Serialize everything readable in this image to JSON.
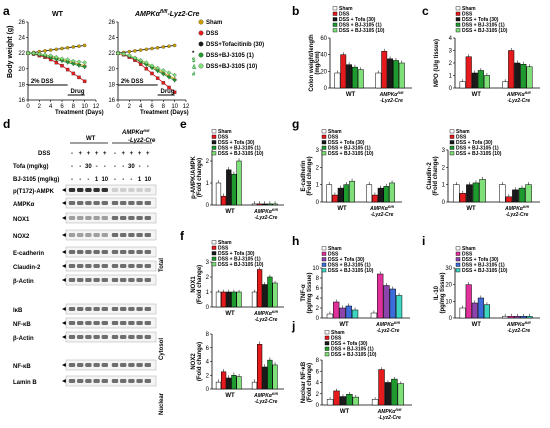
{
  "colors": {
    "sham": "#ffffff",
    "dss": "#e41a1c",
    "tofa": "#1a1a1a",
    "bj1": "#1f9a2e",
    "bj10": "#7fe07a",
    "tnf_tofa": "#8e44ad",
    "tnf_bj1": "#3d6bd9",
    "tnf_bj10": "#3ed6c0",
    "tnf_dss": "#e0309a"
  },
  "panel_labels": [
    "a",
    "b",
    "c",
    "d",
    "e",
    "f",
    "g",
    "h",
    "i",
    "j"
  ],
  "panel_a": {
    "title_left": "WT",
    "title_right": "AMPKα",
    "title_right_sup": "fl/fl",
    "title_right_suffix": "-Lyz2-Cre",
    "ylabel": "Body weight (g)",
    "xlabel": "Treatment (Days)",
    "yticks": [
      "16",
      "18",
      "20",
      "22",
      "24",
      "26"
    ],
    "xticks": [
      "0",
      "2",
      "4",
      "6",
      "8",
      "10",
      "12"
    ],
    "bar_dss": "2% DSS",
    "bar_drug": "Drug",
    "legend": [
      "Sham",
      "DSS",
      "DSS+Tofacitinib (30)",
      "DSS+BJ-3105 (1)",
      "DSS+BJ-3105 (10)"
    ],
    "sig_right": [
      "*",
      "$",
      "&",
      "#"
    ]
  },
  "panel_b": {
    "ylabel": "Colon weight/length",
    "ylabel2": "(mg/cm)",
    "yticks": [
      "0",
      "20",
      "40",
      "60"
    ],
    "legend": [
      "Sham",
      "DSS",
      "DSS + Tofa (30)",
      "DSS + BJ-3105 (1)",
      "DSS + BJ-3105 (10)"
    ],
    "x1": "WT",
    "x2": "AMPKα",
    "x2sup": "fl/fl",
    "x2b": "-Lyz2-Cre"
  },
  "panel_c": {
    "ylabel": "MPO (U/g tissue)",
    "yticks": [
      "0",
      "1",
      "2",
      "3",
      "4"
    ],
    "legend": [
      "Sham",
      "DSS",
      "DSS + Tofa (30)",
      "DSS + BJ-3105 (1)",
      "DSS + BJ-3105 (10)"
    ],
    "x1": "WT",
    "x2": "AMPKα",
    "x2sup": "fl/fl",
    "x2b": "-Lyz2-Cre"
  },
  "panel_d": {
    "header_wt": "WT",
    "header_ko": "AMPKα",
    "header_ko_sup": "fl/fl",
    "header_ko2": "-Lyz2-Cre",
    "row_dss": "DSS",
    "row_tofa": "Tofa (mg/kg)",
    "row_bj": "BJ-3105 (mg/kg)",
    "dss_marks": [
      "-",
      "+",
      "+",
      "+",
      "+",
      "-",
      "+",
      "+",
      "+",
      "+"
    ],
    "tofa_marks": [
      "-",
      "-",
      "30",
      "-",
      "-",
      "-",
      "-",
      "30",
      "-",
      "-"
    ],
    "bj_marks": [
      "-",
      "-",
      "-",
      "1",
      "10",
      "-",
      "-",
      "-",
      "1",
      "10"
    ],
    "bands": [
      "p(T172)-AMPK",
      "AMPKα",
      "NOX1",
      "NOX2",
      "E-cadherin",
      "Claudin-2",
      "β-Actin",
      "IκB",
      "NF-κB",
      "β-Actin",
      "NF-κB",
      "Lamin B"
    ],
    "section_total": "Total",
    "section_cytosol": "Cytosol",
    "section_nuclear": "Nuclear"
  },
  "panel_e": {
    "ylabel": "p-AMPK/AMPK",
    "ylabel2": "(Fold change)",
    "yticks": [
      "0",
      "1",
      "2"
    ],
    "legend": [
      "Sham",
      "DSS",
      "DSS + Tofa (30)",
      "DSS + BJ-3105 (1)",
      "DSS + BJ-3105 (10)"
    ],
    "x1": "WT",
    "x2": "AMPKα",
    "x2sup": "fl/fl",
    "x2b": "-Lyz2-Cre"
  },
  "panel_f": {
    "ylabel_top": "NOX1",
    "ylabel_bottom": "NOX2",
    "ylabel2": "(Fold change)",
    "yticks_top": [
      "0",
      "1",
      "2",
      "3"
    ],
    "yticks_bottom": [
      "0",
      "2",
      "4",
      "6",
      "8"
    ],
    "legend": [
      "Sham",
      "DSS",
      "DSS + Tofa (30)",
      "DSS + BJ-3105 (1)",
      "DSS + BJ-3105 (10)"
    ],
    "x1": "WT",
    "x2": "AMPKα",
    "x2sup": "fl/fl",
    "x2b": "-Lyz2-Cre"
  },
  "panel_g": {
    "ylabel_left": "E-cadherin",
    "ylabel_right": "Claudin-2",
    "ylabel2": "(Fold change)",
    "yticks_left": [
      "0",
      "1",
      "2",
      "3"
    ],
    "yticks_right": [
      "0",
      "1",
      "2",
      "3"
    ],
    "legend": [
      "Sham",
      "DSS",
      "DSS + Tofa (30)",
      "DSS + BJ-3105 (1)",
      "DSS + BJ-3105 (10)"
    ],
    "x1": "WT",
    "x2": "AMPKα",
    "x2sup": "fl/fl",
    "x2b": "-Lyz2-Cre"
  },
  "panel_h": {
    "ylabel": "TNF-α",
    "ylabel2": "(pg/mg tissue)",
    "yticks": [
      "0",
      "2",
      "4",
      "6",
      "8",
      "10"
    ],
    "legend": [
      "Sham",
      "DSS",
      "DSS + Tofa (30)",
      "DSS + BJ-3105 (1)",
      "DSS + BJ-3105 (10)"
    ],
    "x1": "WT",
    "x2": "AMPKα",
    "x2sup": "fl/fl",
    "x2b": "-Lyz2-Cre"
  },
  "panel_i": {
    "ylabel": "IL-10",
    "ylabel2": "(pg/mg tissue)",
    "yticks": [
      "0",
      "10",
      "20",
      "30"
    ],
    "legend": [
      "Sham",
      "DSS",
      "DSS + Tofa (30)",
      "DSS + BJ-3105 (1)",
      "DSS + BJ-3105 (10)"
    ],
    "x1": "WT",
    "x2": "AMPKα",
    "x2sup": "fl/fl",
    "x2b": "-Lyz2-Cre"
  },
  "panel_j": {
    "ylabel": "Nuclear NF-κB",
    "ylabel2": "(Fold change)",
    "yticks": [
      "0",
      "2",
      "4",
      "6",
      "8"
    ],
    "legend": [
      "Sham",
      "DSS",
      "DSS + Tofa (30)",
      "DSS + BJ-3105 (1)",
      "DSS + BJ-3105 (10)"
    ],
    "x1": "WT",
    "x2": "AMPKα",
    "x2sup": "fl/fl",
    "x2b": "-Lyz2-Cre"
  },
  "chart_data": [
    {
      "panel": "a-WT",
      "type": "line",
      "x": [
        0,
        1,
        2,
        3,
        4,
        5,
        6,
        7,
        8,
        9,
        10
      ],
      "xlabel": "Treatment (Days)",
      "ylabel": "Body weight (g)",
      "ylim": [
        16,
        26
      ],
      "xlim": [
        0,
        12
      ],
      "series": [
        {
          "name": "Sham",
          "values": [
            22,
            22.1,
            22.2,
            22.3,
            22.4,
            22.5,
            22.6,
            22.7,
            22.8,
            22.9,
            23.0
          ]
        },
        {
          "name": "DSS",
          "values": [
            22,
            21.9,
            21.7,
            21.5,
            21.2,
            20.8,
            20.4,
            19.9,
            19.4,
            18.9,
            18.4
          ]
        },
        {
          "name": "DSS+Tofacitinib (30)",
          "values": [
            22,
            22.0,
            21.9,
            21.8,
            21.6,
            21.4,
            21.2,
            21.0,
            20.8,
            20.6,
            20.4
          ]
        },
        {
          "name": "DSS+BJ-3105 (1)",
          "values": [
            22,
            21.9,
            21.8,
            21.6,
            21.4,
            21.2,
            21.0,
            20.8,
            20.6,
            20.4,
            20.2
          ]
        },
        {
          "name": "DSS+BJ-3105 (10)",
          "values": [
            22,
            22.0,
            21.9,
            21.8,
            21.7,
            21.5,
            21.3,
            21.2,
            21.0,
            20.9,
            20.8
          ]
        }
      ]
    },
    {
      "panel": "a-KO",
      "type": "line",
      "x": [
        0,
        1,
        2,
        3,
        4,
        5,
        6,
        7,
        8,
        9,
        10
      ],
      "xlabel": "Treatment (Days)",
      "ylabel": "Body weight (g)",
      "ylim": [
        16,
        26
      ],
      "xlim": [
        0,
        12
      ],
      "series": [
        {
          "name": "Sham",
          "values": [
            22,
            22.1,
            22.2,
            22.3,
            22.4,
            22.5,
            22.6,
            22.7,
            22.8,
            22.9,
            23.0
          ]
        },
        {
          "name": "DSS",
          "values": [
            22,
            21.8,
            21.5,
            21.1,
            20.6,
            20.0,
            19.4,
            18.8,
            18.2,
            17.6,
            17.0
          ]
        },
        {
          "name": "DSS+Tofacitinib (30)",
          "values": [
            22,
            21.9,
            21.7,
            21.4,
            21.1,
            20.7,
            20.3,
            19.9,
            19.5,
            19.1,
            18.7
          ]
        },
        {
          "name": "DSS+BJ-3105 (1)",
          "values": [
            22,
            21.9,
            21.6,
            21.3,
            20.9,
            20.5,
            20.1,
            19.7,
            19.3,
            18.9,
            18.5
          ]
        },
        {
          "name": "DSS+BJ-3105 (10)",
          "values": [
            22,
            21.9,
            21.7,
            21.4,
            21.1,
            20.8,
            20.4,
            20.1,
            19.8,
            19.5,
            19.2
          ]
        }
      ]
    },
    {
      "panel": "b",
      "type": "bar",
      "categories": [
        "WT",
        "AMPKαfl/fl-Lyz2-Cre"
      ],
      "ylabel": "Colon weight/length (mg/cm)",
      "ylim": [
        0,
        60
      ],
      "series": [
        {
          "name": "Sham",
          "values": [
            18,
            18
          ]
        },
        {
          "name": "DSS",
          "values": [
            40,
            44
          ]
        },
        {
          "name": "DSS + Tofa (30)",
          "values": [
            28,
            35
          ]
        },
        {
          "name": "DSS + BJ-3105 (1)",
          "values": [
            25,
            33
          ]
        },
        {
          "name": "DSS + BJ-3105 (10)",
          "values": [
            22,
            30
          ]
        }
      ]
    },
    {
      "panel": "c",
      "type": "bar",
      "categories": [
        "WT",
        "AMPKαfl/fl-Lyz2-Cre"
      ],
      "ylabel": "MPO (U/g tissue)",
      "ylim": [
        0,
        4
      ],
      "series": [
        {
          "name": "Sham",
          "values": [
            0.5,
            0.5
          ]
        },
        {
          "name": "DSS",
          "values": [
            2.5,
            3.0
          ]
        },
        {
          "name": "DSS + Tofa (30)",
          "values": [
            1.2,
            2.0
          ]
        },
        {
          "name": "DSS + BJ-3105 (1)",
          "values": [
            1.4,
            1.9
          ]
        },
        {
          "name": "DSS + BJ-3105 (10)",
          "values": [
            1.0,
            1.7
          ]
        }
      ]
    },
    {
      "panel": "e",
      "type": "bar",
      "categories": [
        "WT",
        "AMPKαfl/fl-Lyz2-Cre"
      ],
      "ylabel": "p-AMPK/AMPK (Fold change)",
      "ylim": [
        0,
        2.5
      ],
      "series": [
        {
          "name": "Sham",
          "values": [
            1.0,
            0.05
          ]
        },
        {
          "name": "DSS",
          "values": [
            0.4,
            0.05
          ]
        },
        {
          "name": "DSS + Tofa (30)",
          "values": [
            1.6,
            0.05
          ]
        },
        {
          "name": "DSS + BJ-3105 (1)",
          "values": [
            1.4,
            0.05
          ]
        },
        {
          "name": "DSS + BJ-3105 (10)",
          "values": [
            2.0,
            0.05
          ]
        }
      ]
    },
    {
      "panel": "f-NOX1",
      "type": "bar",
      "categories": [
        "WT",
        "AMPKαfl/fl-Lyz2-Cre"
      ],
      "ylabel": "NOX1 (Fold change)",
      "ylim": [
        0,
        3
      ],
      "series": [
        {
          "name": "Sham",
          "values": [
            1.0,
            1.0
          ]
        },
        {
          "name": "DSS",
          "values": [
            1.0,
            2.5
          ]
        },
        {
          "name": "DSS + Tofa (30)",
          "values": [
            1.0,
            1.5
          ]
        },
        {
          "name": "DSS + BJ-3105 (1)",
          "values": [
            1.0,
            2.0
          ]
        },
        {
          "name": "DSS + BJ-3105 (10)",
          "values": [
            1.0,
            1.6
          ]
        }
      ]
    },
    {
      "panel": "f-NOX2",
      "type": "bar",
      "categories": [
        "WT",
        "AMPKαfl/fl-Lyz2-Cre"
      ],
      "ylabel": "NOX2 (Fold change)",
      "ylim": [
        0,
        8
      ],
      "series": [
        {
          "name": "Sham",
          "values": [
            1.0,
            1.0
          ]
        },
        {
          "name": "DSS",
          "values": [
            2.5,
            6.5
          ]
        },
        {
          "name": "DSS + Tofa (30)",
          "values": [
            1.6,
            3.2
          ]
        },
        {
          "name": "DSS + BJ-3105 (1)",
          "values": [
            2.0,
            4.2
          ]
        },
        {
          "name": "DSS + BJ-3105 (10)",
          "values": [
            1.8,
            3.5
          ]
        }
      ]
    },
    {
      "panel": "g-Ecad",
      "type": "bar",
      "categories": [
        "WT",
        "AMPKαfl/fl-Lyz2-Cre"
      ],
      "ylabel": "E-cadherin (Fold change)",
      "ylim": [
        0,
        3
      ],
      "series": [
        {
          "name": "Sham",
          "values": [
            1.0,
            1.0
          ]
        },
        {
          "name": "DSS",
          "values": [
            0.4,
            0.4
          ]
        },
        {
          "name": "DSS + Tofa (30)",
          "values": [
            0.8,
            0.8
          ]
        },
        {
          "name": "DSS + BJ-3105 (1)",
          "values": [
            1.0,
            0.9
          ]
        },
        {
          "name": "DSS + BJ-3105 (10)",
          "values": [
            1.2,
            1.1
          ]
        }
      ]
    },
    {
      "panel": "g-Cldn2",
      "type": "bar",
      "categories": [
        "WT",
        "AMPKαfl/fl-Lyz2-Cre"
      ],
      "ylabel": "Claudin-2 (Fold change)",
      "ylim": [
        0,
        3
      ],
      "series": [
        {
          "name": "Sham",
          "values": [
            1.0,
            1.0
          ]
        },
        {
          "name": "DSS",
          "values": [
            0.5,
            0.3
          ]
        },
        {
          "name": "DSS + Tofa (30)",
          "values": [
            1.0,
            0.7
          ]
        },
        {
          "name": "DSS + BJ-3105 (1)",
          "values": [
            1.1,
            0.8
          ]
        },
        {
          "name": "DSS + BJ-3105 (10)",
          "values": [
            1.3,
            1.0
          ]
        }
      ]
    },
    {
      "panel": "h",
      "type": "bar",
      "categories": [
        "WT",
        "AMPKαfl/fl-Lyz2-Cre"
      ],
      "ylabel": "TNF-α (pg/mg tissue)",
      "ylim": [
        0,
        10
      ],
      "series": [
        {
          "name": "Sham",
          "values": [
            0.8,
            1.0
          ]
        },
        {
          "name": "DSS",
          "values": [
            3.2,
            8.8
          ]
        },
        {
          "name": "DSS + Tofa (30)",
          "values": [
            2.0,
            6.5
          ]
        },
        {
          "name": "DSS + BJ-3105 (1)",
          "values": [
            2.4,
            5.8
          ]
        },
        {
          "name": "DSS + BJ-3105 (10)",
          "values": [
            1.6,
            4.5
          ]
        }
      ]
    },
    {
      "panel": "i",
      "type": "bar",
      "categories": [
        "WT",
        "AMPKαfl/fl-Lyz2-Cre"
      ],
      "ylabel": "IL-10 (pg/mg tissue)",
      "ylim": [
        0,
        30
      ],
      "series": [
        {
          "name": "Sham",
          "values": [
            6,
            1
          ]
        },
        {
          "name": "DSS",
          "values": [
            20,
            1
          ]
        },
        {
          "name": "DSS + Tofa (30)",
          "values": [
            9,
            1
          ]
        },
        {
          "name": "DSS + BJ-3105 (1)",
          "values": [
            12,
            1
          ]
        },
        {
          "name": "DSS + BJ-3105 (10)",
          "values": [
            8,
            1
          ]
        }
      ]
    },
    {
      "panel": "j",
      "type": "bar",
      "categories": [
        "WT",
        "AMPKαfl/fl-Lyz2-Cre"
      ],
      "ylabel": "Nuclear NF-κB (Fold change)",
      "ylim": [
        0,
        8
      ],
      "series": [
        {
          "name": "Sham",
          "values": [
            1.0,
            1.0
          ]
        },
        {
          "name": "DSS",
          "values": [
            2.5,
            6.3
          ]
        },
        {
          "name": "DSS + Tofa (30)",
          "values": [
            1.5,
            4.0
          ]
        },
        {
          "name": "DSS + BJ-3105 (1)",
          "values": [
            1.9,
            4.6
          ]
        },
        {
          "name": "DSS + BJ-3105 (10)",
          "values": [
            1.4,
            3.8
          ]
        }
      ]
    }
  ]
}
